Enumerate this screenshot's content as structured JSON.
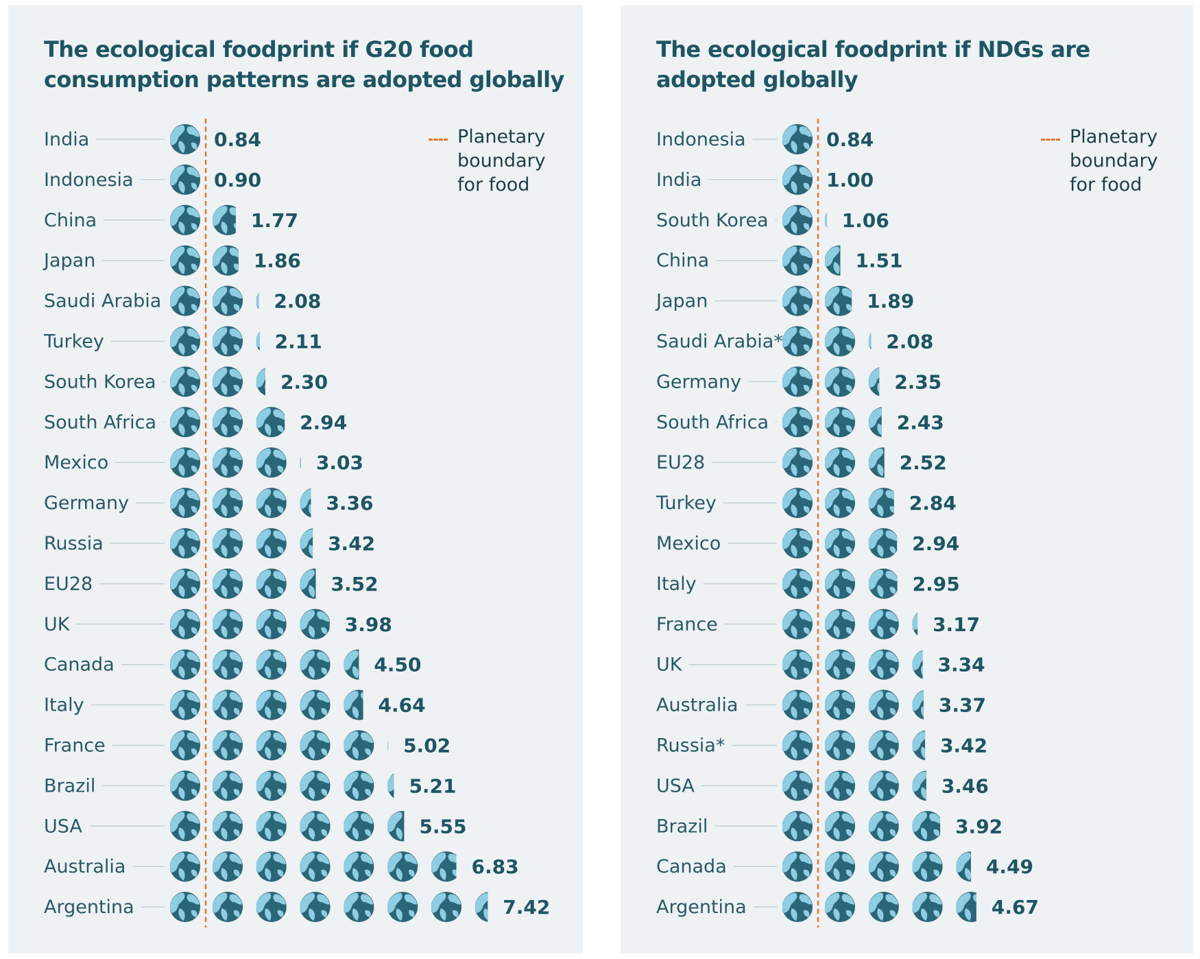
{
  "chart_data": [
    {
      "type": "bar",
      "title": "The ecological foodprint if G20 food consumption patterns are adopted globally",
      "legend": {
        "label": "Planetary\nboundary\nfor food",
        "color": "#e0782f",
        "style": "dashed"
      },
      "reference_line": 1,
      "unit_icon": "globe-icon",
      "categories": [
        "India",
        "Indonesia",
        "China",
        "Japan",
        "Saudi Arabia",
        "Turkey",
        "South Korea",
        "South Africa",
        "Mexico",
        "Germany",
        "Russia",
        "EU28",
        "UK",
        "Canada",
        "Italy",
        "France",
        "Brazil",
        "USA",
        "Australia",
        "Argentina"
      ],
      "values": [
        0.84,
        0.9,
        1.77,
        1.86,
        2.08,
        2.11,
        2.3,
        2.94,
        3.03,
        3.36,
        3.42,
        3.52,
        3.98,
        4.5,
        4.64,
        5.02,
        5.21,
        5.55,
        6.83,
        7.42
      ],
      "value_labels": [
        "0.84",
        "0.90",
        "1.77",
        "1.86",
        "2.08",
        "2.11",
        "2.30",
        "2.94",
        "3.03",
        "3.36",
        "3.42",
        "3.52",
        "3.98",
        "4.50",
        "4.64",
        "5.02",
        "5.21",
        "5.55",
        "6.83",
        "7.42"
      ]
    },
    {
      "type": "bar",
      "title": "The ecological foodprint if NDGs are adopted globally",
      "legend": {
        "label": "Planetary\nboundary\nfor food",
        "color": "#e0782f",
        "style": "dashed"
      },
      "reference_line": 1,
      "unit_icon": "globe-icon",
      "categories": [
        "Indonesia",
        "India",
        "South Korea",
        "China",
        "Japan",
        "Saudi Arabia*",
        "Germany",
        "South Africa",
        "EU28",
        "Turkey",
        "Mexico",
        "Italy",
        "France",
        "UK",
        "Australia",
        "Russia*",
        "USA",
        "Brazil",
        "Canada",
        "Argentina"
      ],
      "values": [
        0.84,
        1.0,
        1.06,
        1.51,
        1.89,
        2.08,
        2.35,
        2.43,
        2.52,
        2.84,
        2.94,
        2.95,
        3.17,
        3.34,
        3.37,
        3.42,
        3.46,
        3.92,
        4.49,
        4.67
      ],
      "value_labels": [
        "0.84",
        "1.00",
        "1.06",
        "1.51",
        "1.89",
        "2.08",
        "2.35",
        "2.43",
        "2.52",
        "2.84",
        "2.94",
        "2.95",
        "3.17",
        "3.34",
        "3.37",
        "3.42",
        "3.46",
        "3.92",
        "4.49",
        "4.67"
      ]
    }
  ],
  "colors": {
    "background": "#eef2f4",
    "title": "#1f5562",
    "globe_ocean": "#2a6677",
    "globe_land": "#8fcde3",
    "boundary": "#e0782f",
    "leader_line": "#c3d0d6"
  }
}
